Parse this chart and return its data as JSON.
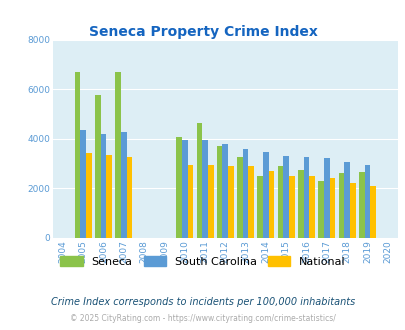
{
  "title": "Seneca Property Crime Index",
  "full_years": [
    2004,
    2005,
    2006,
    2007,
    2008,
    2009,
    2010,
    2011,
    2012,
    2013,
    2014,
    2015,
    2016,
    2017,
    2018,
    2019,
    2020
  ],
  "plot_years": [
    2005,
    2006,
    2007,
    2010,
    2011,
    2012,
    2013,
    2014,
    2015,
    2016,
    2017,
    2018,
    2019
  ],
  "seneca": [
    6700,
    5750,
    6700,
    4050,
    4650,
    3700,
    3250,
    2500,
    2900,
    2750,
    2300,
    2600,
    2650
  ],
  "south_carolina": [
    4350,
    4200,
    4250,
    3950,
    3950,
    3800,
    3600,
    3450,
    3300,
    3250,
    3200,
    3050,
    2950
  ],
  "national": [
    3400,
    3350,
    3250,
    2950,
    2950,
    2900,
    2900,
    2700,
    2500,
    2500,
    2400,
    2200,
    2100
  ],
  "seneca_color": "#8bc34a",
  "sc_color": "#5b9bd5",
  "national_color": "#ffc000",
  "bg_color": "#ddeef5",
  "title_color": "#1565c0",
  "tick_color": "#5b9bd5",
  "ylim": [
    0,
    8000
  ],
  "yticks": [
    0,
    2000,
    4000,
    6000,
    8000
  ],
  "subtitle": "Crime Index corresponds to incidents per 100,000 inhabitants",
  "footer": "© 2025 CityRating.com - https://www.cityrating.com/crime-statistics/",
  "bar_width": 0.28
}
